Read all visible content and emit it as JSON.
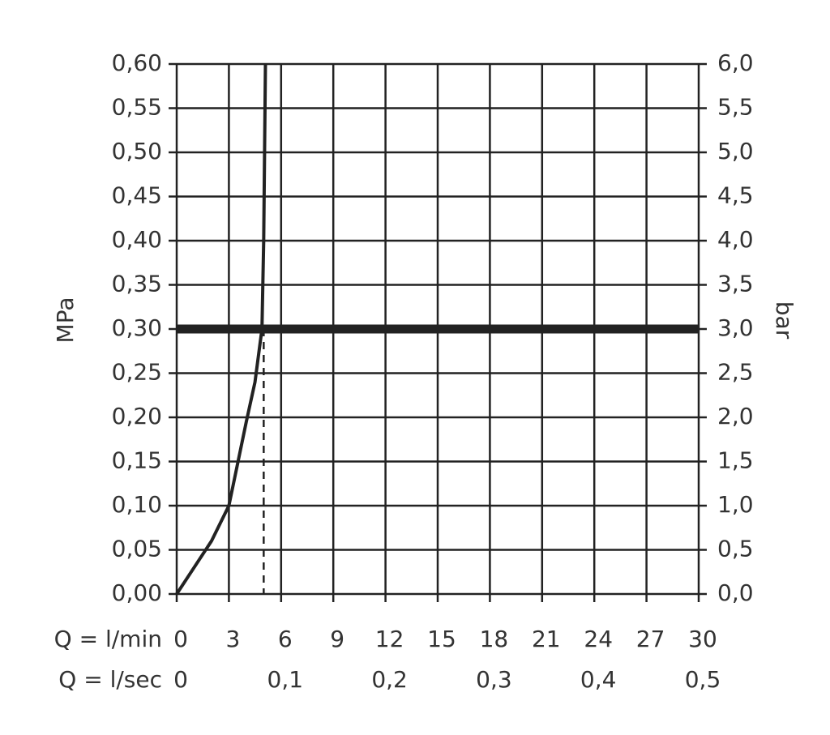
{
  "chart_data": {
    "type": "line",
    "x": [
      0,
      1,
      2,
      3,
      4,
      4.5,
      4.9,
      5.0,
      5.1
    ],
    "values": [
      0,
      0.03,
      0.06,
      0.1,
      0.195,
      0.24,
      0.3,
      0.4,
      0.6
    ],
    "color": "#222222",
    "xlabel": "Q = l/min",
    "x2label": "Q = l/sec",
    "ylabel": "MPa",
    "y2label": "bar",
    "xlim": [
      0,
      30
    ],
    "xticks": [
      0,
      3,
      6,
      9,
      12,
      15,
      18,
      21,
      24,
      27,
      30
    ],
    "x2lim": [
      0,
      0.5
    ],
    "x2ticks": [
      0,
      {
        "value": 0.1,
        "label": "0,1"
      },
      {
        "value": 0.2,
        "label": "0,2"
      },
      {
        "value": 0.3,
        "label": "0,3"
      },
      {
        "value": 0.4,
        "label": "0,4"
      },
      {
        "value": 0.5,
        "label": "0,5"
      }
    ],
    "ylim": [
      0,
      0.6
    ],
    "yticks": [
      {
        "value": 0,
        "label": "0,00"
      },
      {
        "value": 0.05,
        "label": "0,05"
      },
      {
        "value": 0.1,
        "label": "0,10"
      },
      {
        "value": 0.15,
        "label": "0,15"
      },
      {
        "value": 0.2,
        "label": "0,20"
      },
      {
        "value": 0.25,
        "label": "0,25"
      },
      {
        "value": 0.3,
        "label": "0,30"
      },
      {
        "value": 0.35,
        "label": "0,35"
      },
      {
        "value": 0.4,
        "label": "0,40"
      },
      {
        "value": 0.45,
        "label": "0,45"
      },
      {
        "value": 0.5,
        "label": "0,50"
      },
      {
        "value": 0.55,
        "label": "0,55"
      },
      {
        "value": 0.6,
        "label": "0,60"
      }
    ],
    "y2lim": [
      0,
      6
    ],
    "y2ticks": [
      {
        "value": 0,
        "label": "0,0"
      },
      {
        "value": 0.5,
        "label": "0,5"
      },
      {
        "value": 1,
        "label": "1,0"
      },
      {
        "value": 1.5,
        "label": "1,5"
      },
      {
        "value": 2,
        "label": "2,0"
      },
      {
        "value": 2.5,
        "label": "2,5"
      },
      {
        "value": 3,
        "label": "3,0"
      },
      {
        "value": 3.5,
        "label": "3,5"
      },
      {
        "value": 4,
        "label": "4,0"
      },
      {
        "value": 4.5,
        "label": "4,5"
      },
      {
        "value": 5,
        "label": "5,0"
      },
      {
        "value": 5.5,
        "label": "5,5"
      },
      {
        "value": 6,
        "label": "6,0"
      }
    ],
    "hline": 0.3,
    "vline_x": 5,
    "grid": true
  }
}
